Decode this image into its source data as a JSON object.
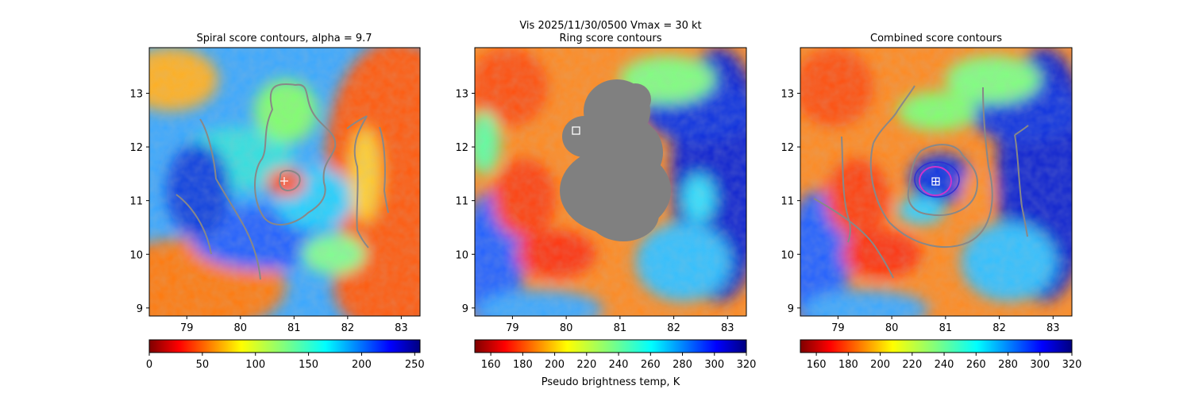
{
  "figure": {
    "suptitle_line1": "Vis  2025/11/30/0500    Vmax = 30 kt"
  },
  "chart_data": [
    {
      "type": "heatmap",
      "title": "Spiral score contours, alpha =  9.7",
      "xlim": [
        78.3,
        83.35
      ],
      "ylim": [
        8.85,
        13.85
      ],
      "xticks": [
        79,
        80,
        81,
        82,
        83
      ],
      "yticks": [
        9,
        10,
        11,
        12,
        13
      ],
      "colorbar": {
        "min": 0,
        "max": 255,
        "ticks": [
          0,
          50,
          100,
          150,
          200,
          250
        ],
        "colormap": "jet_r",
        "label": ""
      },
      "center_marker": {
        "type": "plus",
        "x": 80.8,
        "y": 11.35,
        "color": "#ffffff"
      },
      "contour_color": "#888888"
    },
    {
      "type": "heatmap",
      "title": "Ring score contours",
      "xlim": [
        78.3,
        83.35
      ],
      "ylim": [
        8.85,
        13.85
      ],
      "xticks": [
        79,
        80,
        81,
        82,
        83
      ],
      "yticks": [
        9,
        10,
        11,
        12,
        13
      ],
      "colorbar": {
        "min": 150,
        "max": 320,
        "ticks": [
          160,
          180,
          200,
          220,
          240,
          260,
          280,
          300,
          320
        ],
        "colormap": "jet_r",
        "label": "Pseudo brightness temp, K"
      },
      "masked_region_color": "#808080",
      "center_marker": {
        "type": "square",
        "x": 80.15,
        "y": 12.3,
        "color": "#ffffff"
      }
    },
    {
      "type": "heatmap",
      "title": "Combined score contours",
      "xlim": [
        78.3,
        83.35
      ],
      "ylim": [
        8.85,
        13.85
      ],
      "xticks": [
        79,
        80,
        81,
        82,
        83
      ],
      "yticks": [
        9,
        10,
        11,
        12,
        13
      ],
      "colorbar": {
        "min": 150,
        "max": 320,
        "ticks": [
          160,
          180,
          200,
          220,
          240,
          260,
          280,
          300,
          320
        ],
        "colormap": "jet_r",
        "label": ""
      },
      "center_marker": {
        "type": "square-plus",
        "x": 80.8,
        "y": 11.35,
        "color": "#ffffff"
      },
      "ring_color": "#cc33cc",
      "contour_color": "#888888"
    }
  ]
}
